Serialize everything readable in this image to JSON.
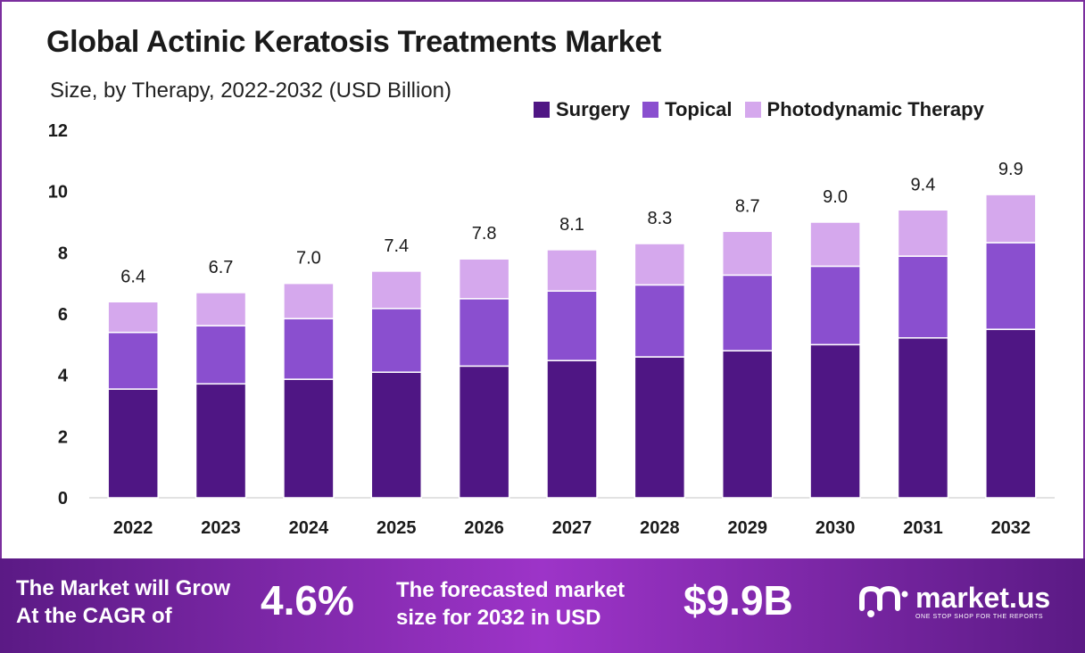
{
  "header": {
    "title": "Global Actinic Keratosis Treatments Market",
    "subtitle": "Size, by Therapy, 2022-2032 (USD Billion)"
  },
  "legend": [
    {
      "label": "Surgery",
      "color": "#4f1684"
    },
    {
      "label": "Topical",
      "color": "#8a4fcf"
    },
    {
      "label": "Photodynamic Therapy",
      "color": "#d5a8ed"
    }
  ],
  "chart_data": {
    "type": "bar",
    "stacked": true,
    "title": "Global Actinic Keratosis Treatments Market",
    "subtitle": "Size, by Therapy, 2022-2032 (USD Billion)",
    "xlabel": "",
    "ylabel": "",
    "ylim": [
      0,
      12
    ],
    "yticks": [
      0,
      2,
      4,
      6,
      8,
      10,
      12
    ],
    "categories": [
      "2022",
      "2023",
      "2024",
      "2025",
      "2026",
      "2027",
      "2028",
      "2029",
      "2030",
      "2031",
      "2032"
    ],
    "series": [
      {
        "name": "Surgery",
        "color": "#4f1684",
        "values": [
          3.55,
          3.72,
          3.87,
          4.1,
          4.3,
          4.48,
          4.6,
          4.8,
          5.0,
          5.22,
          5.5
        ]
      },
      {
        "name": "Topical",
        "color": "#8a4fcf",
        "values": [
          1.85,
          1.9,
          1.98,
          2.08,
          2.2,
          2.27,
          2.35,
          2.47,
          2.56,
          2.67,
          2.83
        ]
      },
      {
        "name": "Photodynamic Therapy",
        "color": "#d5a8ed",
        "values": [
          1.0,
          1.08,
          1.15,
          1.22,
          1.3,
          1.35,
          1.35,
          1.43,
          1.44,
          1.51,
          1.57
        ]
      }
    ],
    "totals": [
      "6.4",
      "6.7",
      "7.0",
      "7.4",
      "7.8",
      "8.1",
      "8.3",
      "8.7",
      "9.0",
      "9.4",
      "9.9"
    ],
    "legend_position": "top-right",
    "grid": false
  },
  "banner": {
    "cagr_text_line1": "The Market will Grow",
    "cagr_text_line2": "At the CAGR of",
    "cagr_value": "4.6%",
    "forecast_text_line1": "The forecasted market",
    "forecast_text_line2": "size for 2032 in USD",
    "forecast_value": "$9.9B"
  },
  "brand": {
    "name": "market.us",
    "tagline": "ONE STOP SHOP FOR THE REPORTS"
  }
}
